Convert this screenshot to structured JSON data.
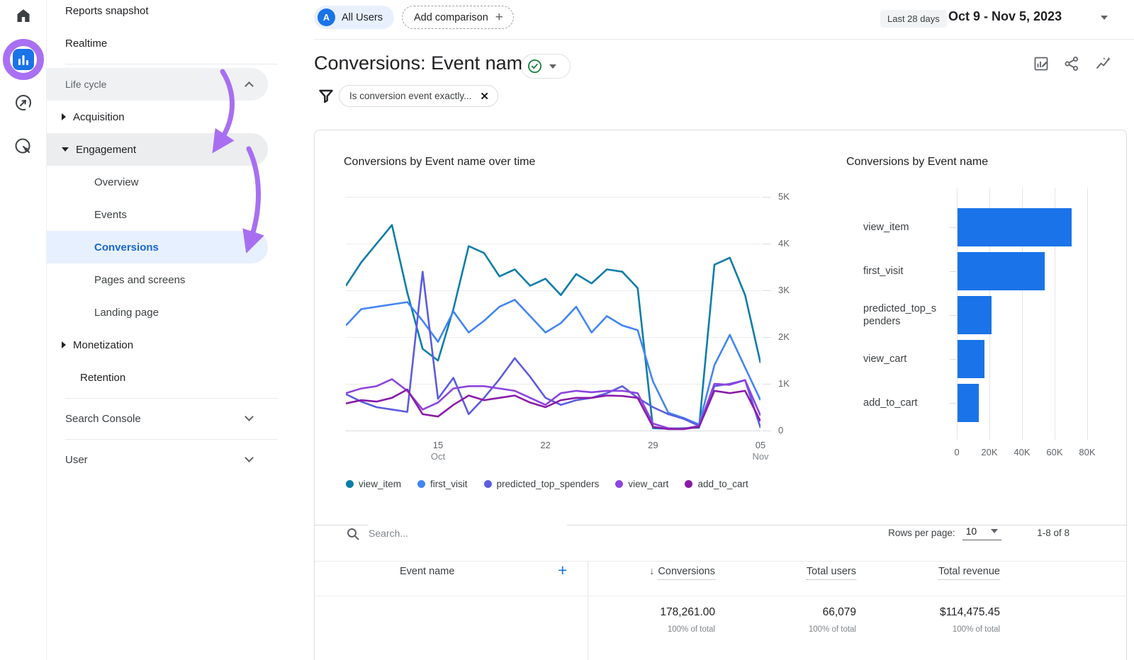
{
  "rail": {
    "icons": [
      {
        "name": "home-icon"
      },
      {
        "name": "reports-icon",
        "active": true,
        "active_color": "#1a73e8"
      },
      {
        "name": "explore-icon"
      },
      {
        "name": "advertising-icon"
      }
    ],
    "annotation_color": "#a468f2"
  },
  "sidebar": {
    "items": [
      {
        "label": "Reports snapshot",
        "type": "top"
      },
      {
        "label": "Realtime",
        "type": "top"
      },
      {
        "type": "divider"
      },
      {
        "label": "Life cycle",
        "type": "collection",
        "chevron": "up"
      },
      {
        "label": "Acquisition",
        "type": "section",
        "arrow": "right"
      },
      {
        "label": "Engagement",
        "type": "section",
        "arrow": "down",
        "active": true
      },
      {
        "label": "Overview",
        "type": "child"
      },
      {
        "label": "Events",
        "type": "child"
      },
      {
        "label": "Conversions",
        "type": "child",
        "selected": true
      },
      {
        "label": "Pages and screens",
        "type": "child"
      },
      {
        "label": "Landing page",
        "type": "child"
      },
      {
        "label": "Monetization",
        "type": "section",
        "arrow": "right"
      },
      {
        "label": "Retention",
        "type": "section-noarrow"
      },
      {
        "type": "divider"
      },
      {
        "label": "Search Console",
        "type": "collection2",
        "chevron": "down"
      },
      {
        "type": "divider"
      },
      {
        "label": "User",
        "type": "collection2",
        "chevron": "down"
      }
    ]
  },
  "topbar": {
    "audience_initial": "A",
    "audience_label": "All Users",
    "add_comparison_label": "Add comparison",
    "date_preset": "Last 28 days",
    "date_range": "Oct 9 - Nov 5, 2023"
  },
  "report": {
    "title": "Conversions: Event name",
    "filter_chip": "Is conversion event exactly..."
  },
  "chart_data": [
    {
      "type": "line",
      "title": "Conversions by Event name over time",
      "ylim": [
        0,
        5000
      ],
      "grid": true,
      "legend_position": "bottom",
      "x": [
        "Oct 9",
        "Oct 10",
        "Oct 11",
        "Oct 12",
        "Oct 13",
        "Oct 14",
        "Oct 15",
        "Oct 16",
        "Oct 17",
        "Oct 18",
        "Oct 19",
        "Oct 20",
        "Oct 21",
        "Oct 22",
        "Oct 23",
        "Oct 24",
        "Oct 25",
        "Oct 26",
        "Oct 27",
        "Oct 28",
        "Oct 29",
        "Oct 30",
        "Oct 31",
        "Nov 1",
        "Nov 2",
        "Nov 3",
        "Nov 4",
        "Nov 5"
      ],
      "x_ticks": [
        {
          "index": 6,
          "label": "15",
          "sublabel": "Oct"
        },
        {
          "index": 13,
          "label": "22",
          "sublabel": ""
        },
        {
          "index": 20,
          "label": "29",
          "sublabel": ""
        },
        {
          "index": 27,
          "label": "05",
          "sublabel": "Nov"
        }
      ],
      "y_ticks": [
        {
          "value": 5000,
          "label": "5K"
        },
        {
          "value": 4000,
          "label": "4K"
        },
        {
          "value": 3000,
          "label": "3K"
        },
        {
          "value": 2000,
          "label": "2K"
        },
        {
          "value": 1000,
          "label": "1K"
        },
        {
          "value": 0,
          "label": "0"
        }
      ],
      "series": [
        {
          "name": "view_item",
          "color": "#0d7da8",
          "values": [
            3100,
            3600,
            4000,
            4400,
            2950,
            1750,
            1500,
            2600,
            3950,
            3800,
            3300,
            3450,
            3100,
            3250,
            2900,
            3350,
            3150,
            3450,
            3400,
            3050,
            50,
            40,
            50,
            60,
            3550,
            3700,
            2900,
            1450
          ]
        },
        {
          "name": "first_visit",
          "color": "#4285f4",
          "values": [
            2250,
            2600,
            2650,
            2700,
            2750,
            2350,
            1900,
            2550,
            2100,
            2350,
            2650,
            2800,
            2450,
            2100,
            2300,
            2650,
            2100,
            2450,
            2250,
            2150,
            1050,
            380,
            270,
            130,
            1400,
            2050,
            1350,
            650
          ]
        },
        {
          "name": "predicted_top_spenders",
          "color": "#5c5ce0",
          "values": [
            780,
            620,
            500,
            450,
            400,
            3400,
            680,
            1130,
            350,
            700,
            1100,
            1550,
            1150,
            700,
            550,
            650,
            700,
            800,
            950,
            700,
            500,
            350,
            250,
            100,
            950,
            1000,
            1080,
            60
          ]
        },
        {
          "name": "view_cart",
          "color": "#8d44e0",
          "values": [
            800,
            900,
            950,
            1100,
            850,
            450,
            600,
            900,
            950,
            950,
            900,
            850,
            700,
            550,
            800,
            850,
            820,
            850,
            850,
            800,
            150,
            50,
            40,
            100,
            1000,
            980,
            1080,
            320
          ]
        },
        {
          "name": "add_to_cart",
          "color": "#8a1ba9",
          "values": [
            580,
            650,
            620,
            700,
            880,
            350,
            300,
            550,
            750,
            650,
            700,
            750,
            600,
            500,
            650,
            700,
            700,
            750,
            740,
            700,
            80,
            30,
            30,
            80,
            850,
            800,
            850,
            200
          ]
        }
      ]
    },
    {
      "type": "bar",
      "title": "Conversions by Event name",
      "orientation": "horizontal",
      "categories": [
        "view_item",
        "first_visit",
        "predicted_top_spenders",
        "view_cart",
        "add_to_cart"
      ],
      "values": [
        70000,
        53500,
        21000,
        16500,
        13000
      ],
      "xlim": [
        0,
        80000
      ],
      "bar_color": "#1a73e8",
      "x_ticks": [
        {
          "value": 0,
          "label": "0"
        },
        {
          "value": 20000,
          "label": "20K"
        },
        {
          "value": 40000,
          "label": "40K"
        },
        {
          "value": 60000,
          "label": "60K"
        },
        {
          "value": 80000,
          "label": "80K"
        }
      ]
    }
  ],
  "table": {
    "search_placeholder": "Search...",
    "rows_per_page_label": "Rows per page:",
    "rows_per_page_value": "10",
    "range_text": "1-8 of 8",
    "dimension_column": {
      "label": "Event name"
    },
    "metric_columns": [
      {
        "label": "Conversions",
        "sorted": true,
        "total": "178,261.00",
        "subtext": "100% of total"
      },
      {
        "label": "Total users",
        "sorted": false,
        "total": "66,079",
        "subtext": "100% of total"
      },
      {
        "label": "Total revenue",
        "sorted": false,
        "total": "$114,475.45",
        "subtext": "100% of total"
      }
    ]
  }
}
